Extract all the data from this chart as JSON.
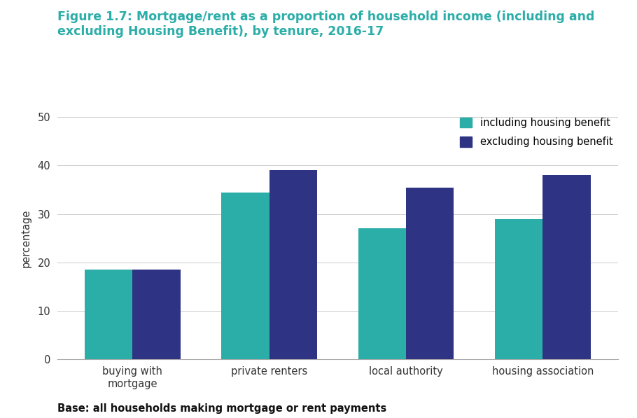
{
  "title_line1": "Figure 1.7: Mortgage/rent as a proportion of household income (including and",
  "title_line2": "excluding Housing Benefit), by tenure, 2016-17",
  "title_color": "#2BADA8",
  "categories": [
    "buying with\nmortgage",
    "private renters",
    "local authority",
    "housing association"
  ],
  "including_hb": [
    18.5,
    34.5,
    27.0,
    29.0
  ],
  "excluding_hb": [
    18.5,
    39.0,
    35.5,
    38.0
  ],
  "color_including": "#2BADA8",
  "color_excluding": "#2E3483",
  "ylabel": "percentage",
  "ylim": [
    0,
    50
  ],
  "yticks": [
    0,
    10,
    20,
    30,
    40,
    50
  ],
  "legend_including": "including housing benefit",
  "legend_excluding": "excluding housing benefit",
  "base_text": "Base: all households making mortgage or rent payments",
  "bar_width": 0.35,
  "background_color": "#ffffff"
}
